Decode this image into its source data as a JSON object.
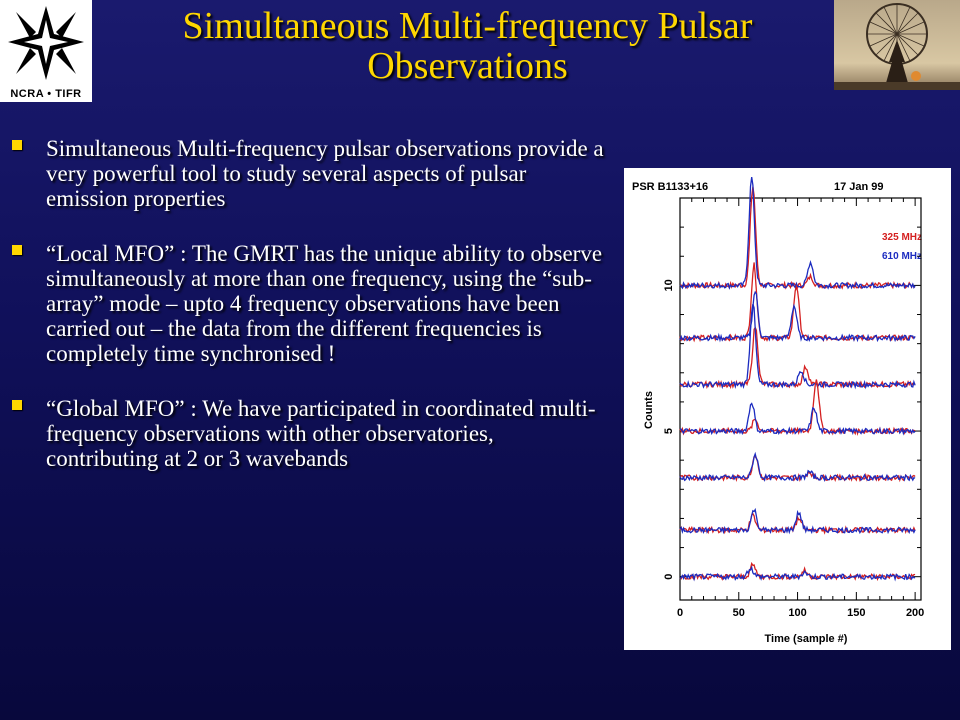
{
  "logo": {
    "text": "NCRA • TIFR"
  },
  "title": {
    "line1": "Simultaneous  Multi-frequency  Pulsar",
    "line2": "Observations"
  },
  "bullets": [
    "Simultaneous  Multi-frequency pulsar observations  provide a very powerful tool to study several aspects of pulsar emission properties",
    "“Local MFO”  :  The GMRT has the unique ability to observe simultaneously at more than one frequency, using the “sub-array” mode – upto 4 frequency observations have been carried out – the data from the different frequencies is completely time synchronised !",
    "“Global MFO”  :  We have participated in coordinated multi-frequency observations with other observatories, contributing at 2 or 3  wavebands"
  ],
  "chart_data": {
    "type": "line",
    "header_left": "PSR B1133+16",
    "header_right": "17 Jan 99",
    "xlabel": "Time (sample #)",
    "ylabel": "Counts",
    "xlim": [
      0,
      205
    ],
    "ylim": [
      -0.8,
      13
    ],
    "x_ticks": [
      "0",
      "50",
      "100",
      "150",
      "200"
    ],
    "y_ticks": [
      "0",
      "5",
      "10"
    ],
    "legend_position": "top-right",
    "series": [
      {
        "name": "325 MHz",
        "color": "#d42020"
      },
      {
        "name": "610 MHz",
        "color": "#1c2cc0"
      }
    ],
    "profiles": [
      {
        "offset": 10.0,
        "p325": [
          [
            62,
            3.4
          ],
          [
            111,
            0.3
          ]
        ],
        "p610": [
          [
            61,
            3.7
          ],
          [
            111,
            0.8
          ]
        ]
      },
      {
        "offset": 8.2,
        "p325": [
          [
            63,
            2.5
          ],
          [
            99,
            1.8
          ]
        ],
        "p610": [
          [
            64,
            1.6
          ],
          [
            97,
            1.1
          ]
        ]
      },
      {
        "offset": 6.6,
        "p325": [
          [
            64,
            2.0
          ],
          [
            107,
            0.6
          ]
        ],
        "p610": [
          [
            62,
            2.8
          ],
          [
            103,
            0.5
          ]
        ]
      },
      {
        "offset": 5.0,
        "p325": [
          [
            64,
            0.4
          ],
          [
            116,
            1.8
          ]
        ],
        "p610": [
          [
            61,
            1.0
          ],
          [
            114,
            0.8
          ]
        ]
      },
      {
        "offset": 3.4,
        "p325": [
          [
            64,
            0.8
          ],
          [
            110,
            0.2
          ]
        ],
        "p610": [
          [
            64,
            0.8
          ],
          [
            110,
            0.2
          ]
        ]
      },
      {
        "offset": 1.6,
        "p325": [
          [
            62,
            0.5
          ],
          [
            101,
            0.4
          ]
        ],
        "p610": [
          [
            63,
            0.7
          ],
          [
            101,
            0.6
          ]
        ]
      },
      {
        "offset": 0.0,
        "p325": [
          [
            62,
            0.4
          ],
          [
            106,
            0.2
          ]
        ],
        "p610": [
          [
            60,
            0.3
          ],
          [
            106,
            0.15
          ]
        ]
      }
    ]
  }
}
